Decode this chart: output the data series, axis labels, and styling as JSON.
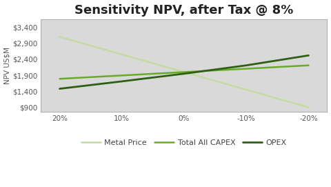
{
  "title": "Sensitivity NPV, after Tax @ 8%",
  "xlabel": "",
  "ylabel": "NPV US$M",
  "x_labels": [
    "20%",
    "10%",
    "0%",
    "-10%",
    "-20%"
  ],
  "x_values": [
    0,
    1,
    2,
    3,
    4
  ],
  "ylim": [
    750,
    3650
  ],
  "yticks": [
    900,
    1400,
    1900,
    2400,
    2900,
    3400
  ],
  "ytick_labels": [
    "$900",
    "$1,400",
    "$1,900",
    "$2,400",
    "$2,900",
    "$3,400"
  ],
  "series": [
    {
      "label": "Metal Price",
      "values": [
        3100,
        2550,
        2000,
        1450,
        900
      ],
      "color": "#c5d9a0",
      "linewidth": 1.8,
      "zorder": 1
    },
    {
      "label": "Total All CAPEX",
      "values": [
        1790,
        1895,
        2000,
        2105,
        2210
      ],
      "color": "#6aaa2a",
      "linewidth": 1.8,
      "zorder": 2
    },
    {
      "label": "OPEX",
      "values": [
        1480,
        1710,
        1950,
        2210,
        2520
      ],
      "color": "#2d6010",
      "linewidth": 2.0,
      "zorder": 3
    }
  ],
  "plot_bg_color": "#d9d9d9",
  "fig_bg_color": "#ffffff",
  "title_fontsize": 13,
  "legend_fontsize": 8,
  "axis_fontsize": 7.5,
  "ylabel_fontsize": 7.5
}
